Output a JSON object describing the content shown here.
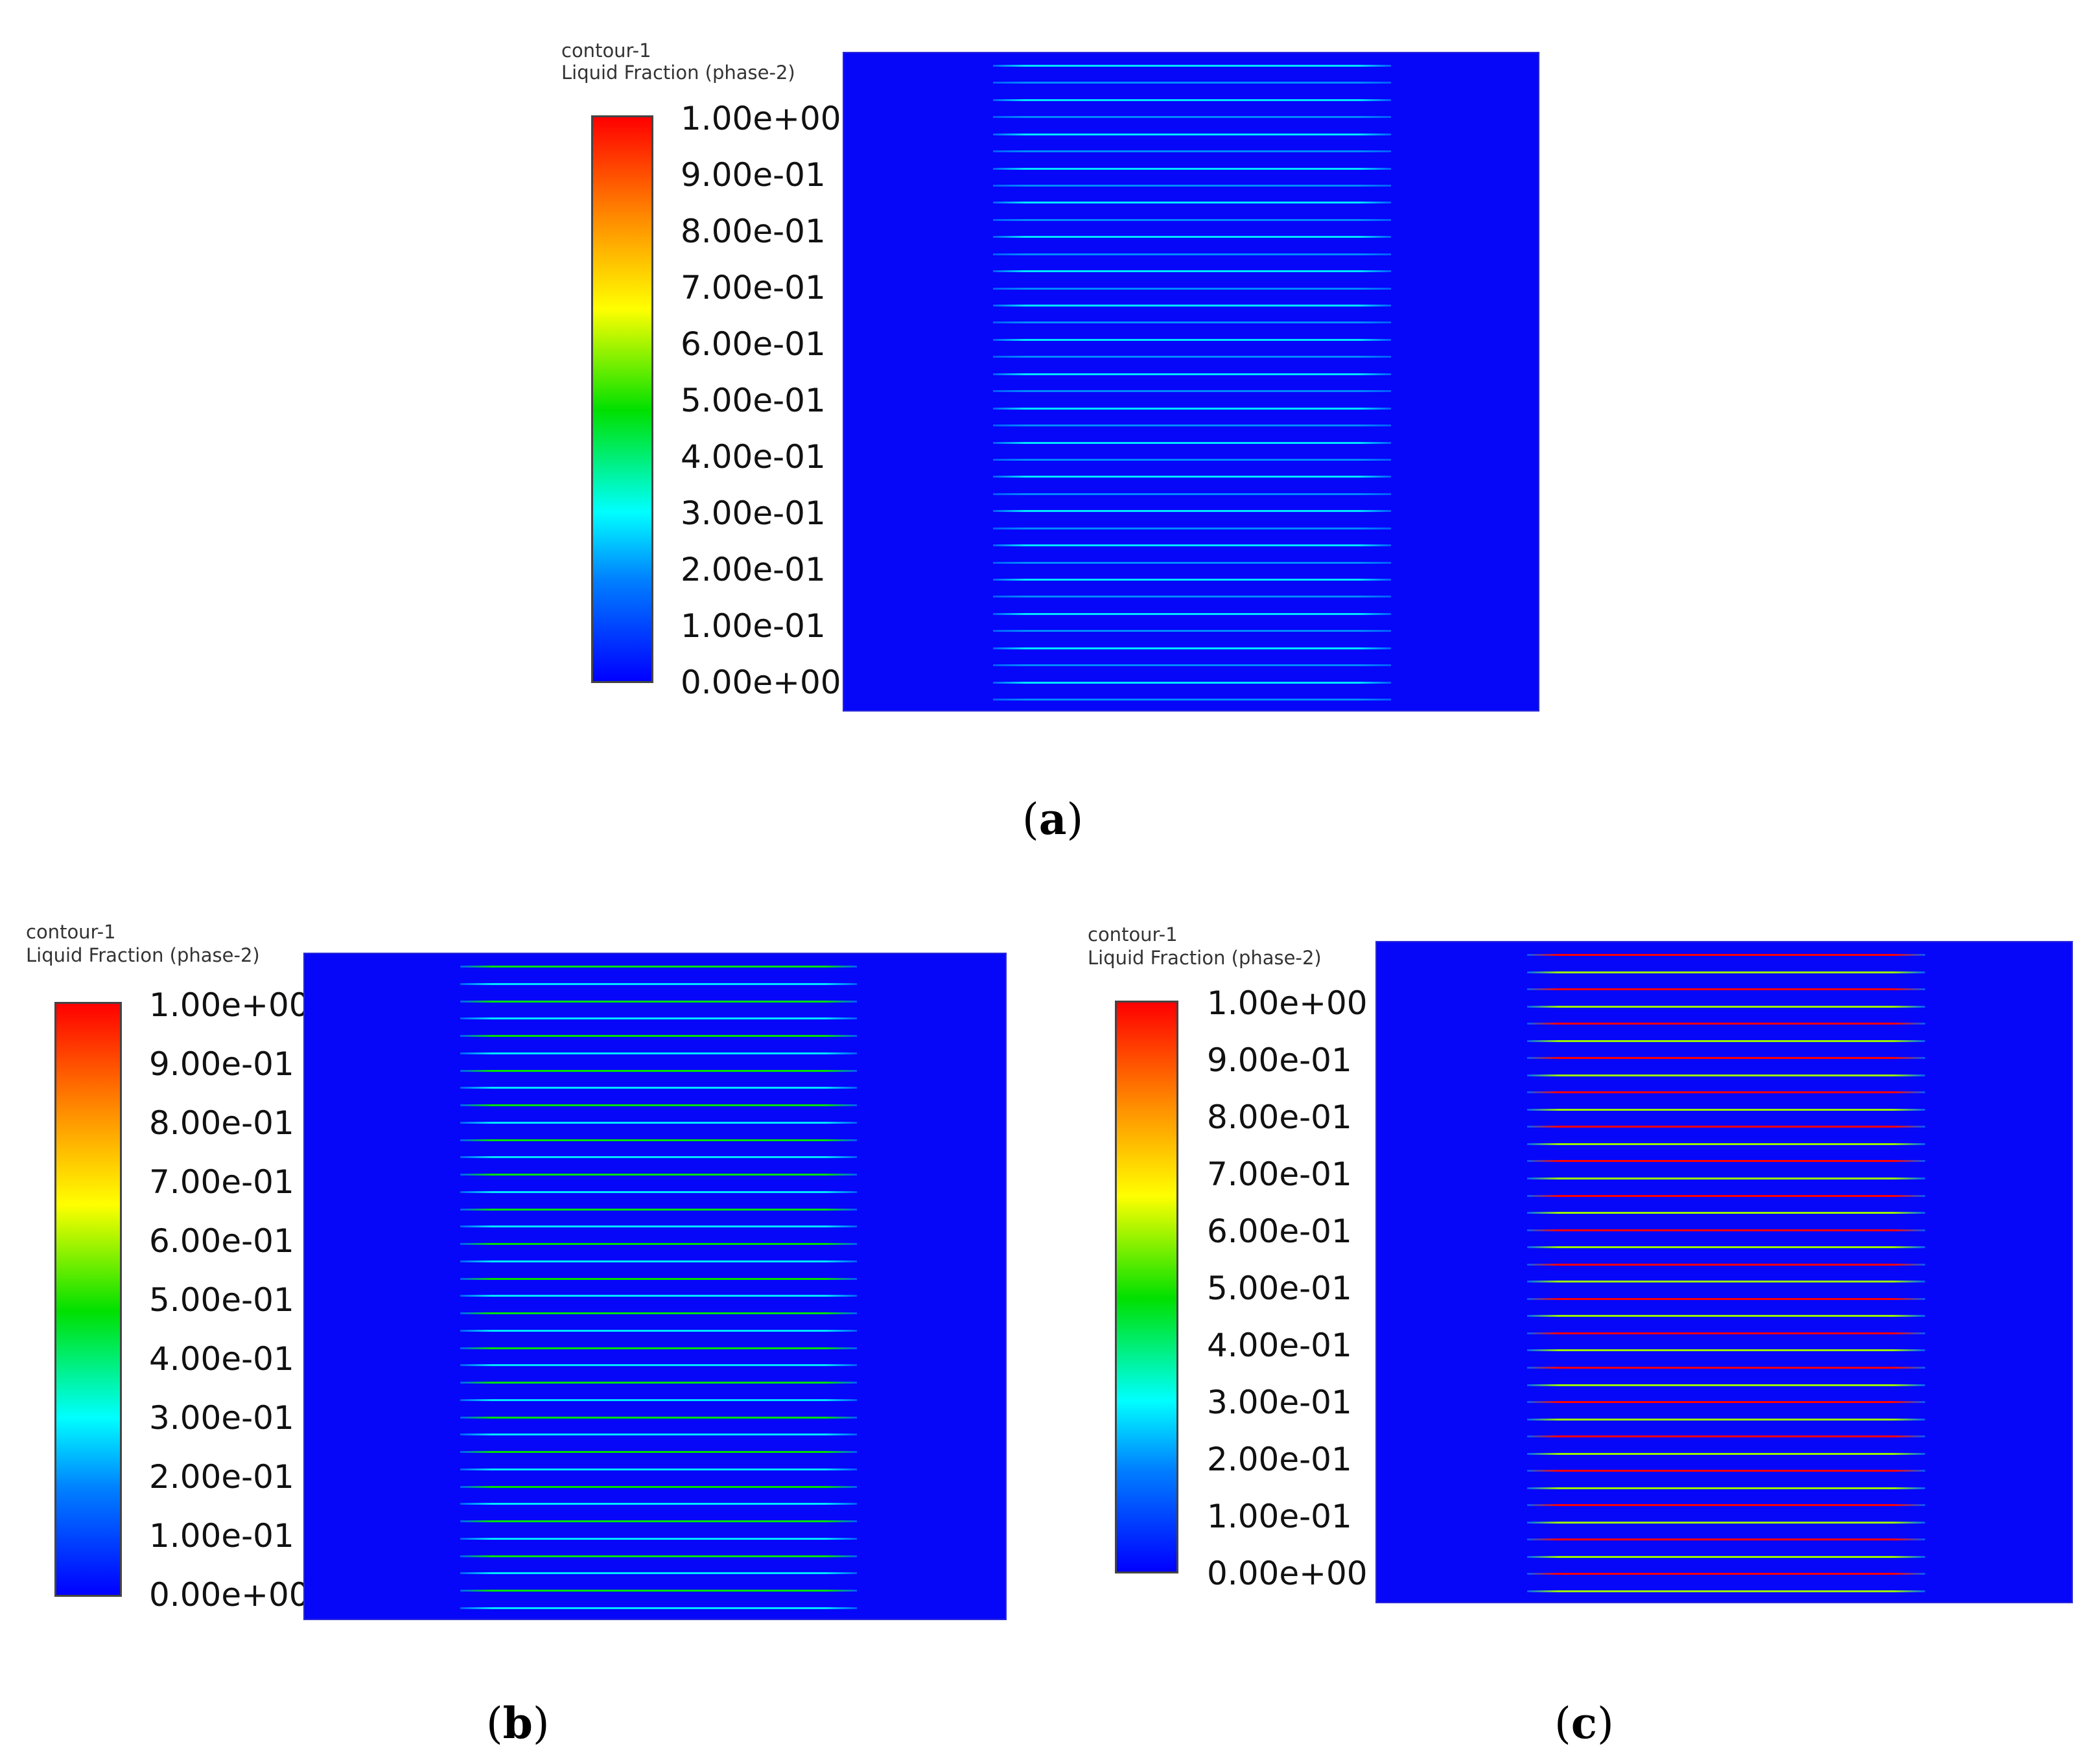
{
  "legend": {
    "title": "contour-1",
    "subtitle": "Liquid Fraction (phase-2)",
    "ticks": [
      "1.00e+00",
      "9.00e-01",
      "8.00e-01",
      "7.00e-01",
      "6.00e-01",
      "5.00e-01",
      "4.00e-01",
      "3.00e-01",
      "2.00e-01",
      "1.00e-01",
      "0.00e+00"
    ],
    "range": [
      0,
      1
    ],
    "colormap": [
      "#0000ff",
      "#0080ff",
      "#00ffff",
      "#00e000",
      "#ffff00",
      "#ff8c00",
      "#ff0000"
    ]
  },
  "panels": [
    {
      "id": "a",
      "label": "a",
      "dominant_strip_value": 0.3,
      "strip_count": 38,
      "background_value": 0.0
    },
    {
      "id": "b",
      "label": "b",
      "dominant_strip_value": 0.5,
      "strip_count": 38,
      "background_value": 0.0
    },
    {
      "id": "c",
      "label": "c",
      "dominant_strip_value": 1.0,
      "strip_count": 38,
      "background_value": 0.0
    }
  ],
  "colors": {
    "background_blue": "#0606f9"
  }
}
